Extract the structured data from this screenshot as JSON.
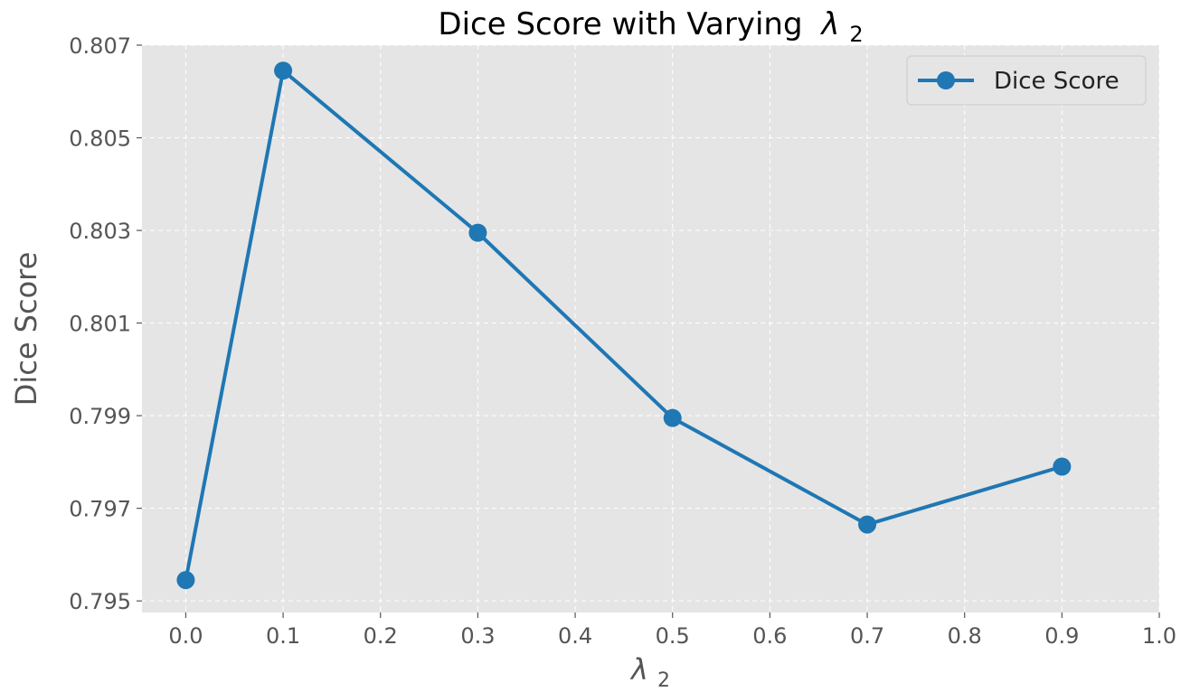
{
  "chart_data": {
    "type": "line",
    "title": "Dice Score with Varying",
    "title_symbol": "λ",
    "title_subscript": "2",
    "xlabel_symbol": "λ",
    "xlabel_subscript": "2",
    "ylabel": "Dice Score",
    "xlim": [
      -0.045,
      1.0
    ],
    "ylim": [
      0.79475,
      0.807
    ],
    "xticks": [
      0.0,
      0.1,
      0.2,
      0.3,
      0.4,
      0.5,
      0.6,
      0.7,
      0.8,
      0.9,
      1.0
    ],
    "xtick_labels": [
      "0.0",
      "0.1",
      "0.2",
      "0.3",
      "0.4",
      "0.5",
      "0.6",
      "0.7",
      "0.8",
      "0.9",
      "1.0"
    ],
    "yticks": [
      0.795,
      0.797,
      0.799,
      0.801,
      0.803,
      0.805,
      0.807
    ],
    "ytick_labels": [
      "0.795",
      "0.797",
      "0.799",
      "0.801",
      "0.803",
      "0.805",
      "0.807"
    ],
    "grid": true,
    "legend_position": "top-right",
    "series": [
      {
        "name": "Dice Score",
        "color": "#1f77b4",
        "x": [
          0.0,
          0.1,
          0.3,
          0.5,
          0.7,
          0.9
        ],
        "y": [
          0.79545,
          0.80645,
          0.80295,
          0.79895,
          0.79665,
          0.7979
        ]
      }
    ]
  },
  "colors": {
    "plot_background": "#e5e5e5",
    "grid": "#ffffff",
    "tick_text": "#555555"
  }
}
